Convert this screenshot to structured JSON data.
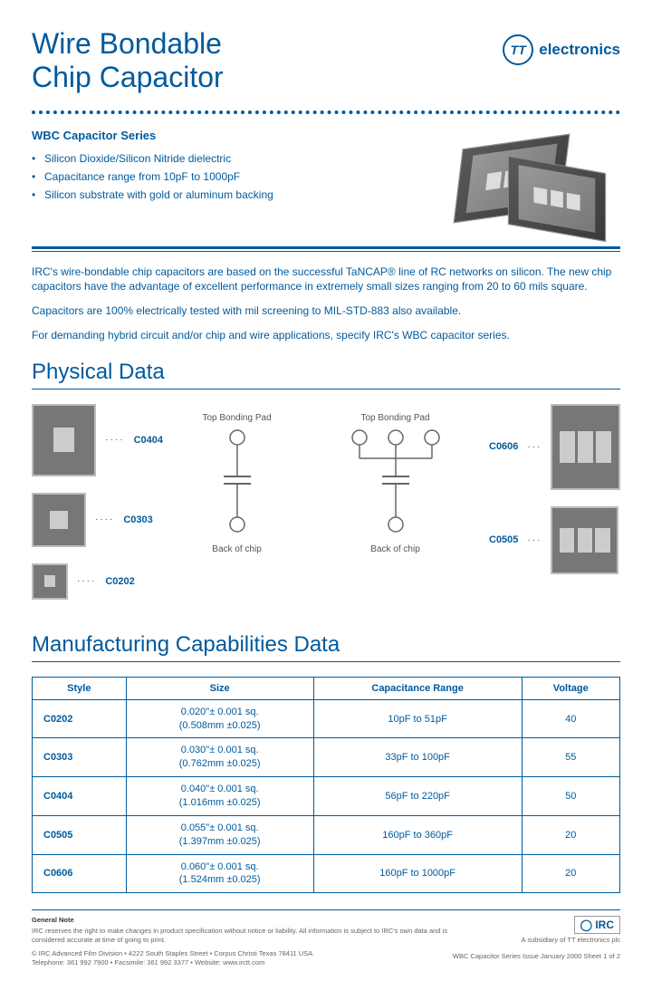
{
  "header": {
    "title_line1": "Wire Bondable",
    "title_line2": "Chip Capacitor",
    "logo_initials": "TT",
    "logo_text": "electronics"
  },
  "series": {
    "title": "WBC Capacitor Series",
    "bullets": [
      "Silicon Dioxide/Silicon Nitride dielectric",
      "Capacitance range from 10pF to 1000pF",
      "Silicon substrate with gold or aluminum backing"
    ]
  },
  "intro": {
    "p1": "IRC's wire-bondable chip capacitors are based on the successful TaNCAP® line of RC networks on silicon. The new chip capacitors have the advantage of excellent performance in extremely small sizes ranging from 20 to 60 mils square.",
    "p2": "Capacitors are 100% electrically tested with mil screening to MIL-STD-883 also available.",
    "p3": "For demanding hybrid circuit and/or chip and wire applications, specify IRC's WBC capacitor series."
  },
  "physical": {
    "title": "Physical Data",
    "labels": {
      "c0404": "C0404",
      "c0303": "C0303",
      "c0202": "C0202",
      "c0606": "C0606",
      "c0505": "C0505"
    },
    "schematic": {
      "top_label": "Top Bonding Pad",
      "bottom_label": "Back of chip"
    }
  },
  "manufacturing": {
    "title": "Manufacturing Capabilities Data",
    "columns": [
      "Style",
      "Size",
      "Capacitance Range",
      "Voltage"
    ],
    "rows": [
      {
        "style": "C0202",
        "size_in": "0.020\"± 0.001 sq.",
        "size_mm": "(0.508mm ±0.025)",
        "cap": "10pF to 51pF",
        "volt": "40"
      },
      {
        "style": "C0303",
        "size_in": "0.030\"± 0.001 sq.",
        "size_mm": "(0.762mm ±0.025)",
        "cap": "33pF to 100pF",
        "volt": "55"
      },
      {
        "style": "C0404",
        "size_in": "0.040\"± 0.001 sq.",
        "size_mm": "(1.016mm ±0.025)",
        "cap": "56pF to 220pF",
        "volt": "50"
      },
      {
        "style": "C0505",
        "size_in": "0.055\"± 0.001 sq.",
        "size_mm": "(1.397mm ±0.025)",
        "cap": "160pF to 360pF",
        "volt": "20"
      },
      {
        "style": "C0606",
        "size_in": "0.060\"± 0.001 sq.",
        "size_mm": "(1.524mm ±0.025)",
        "cap": "160pF to 1000pF",
        "volt": "20"
      }
    ]
  },
  "footer": {
    "general_note_title": "General Note",
    "general_note_text": "IRC reserves the right to make changes in product specification without notice or liability. All information is subject to IRC's own data and is considered accurate at time of going to print.",
    "copyright": "© IRC Advanced Film Division • 4222 South Staples Street • Corpus Christi Texas 78411 USA",
    "contact": "Telephone: 361 992 7900 • Facsimile: 361 992 3377 • Website: www.irctt.com",
    "irc_logo": "IRC",
    "subsidiary": "A subsidiary of TT electronics plc",
    "doc_ref": "WBC Capacitor Series Issue January 2000 Sheet 1 of 2"
  }
}
